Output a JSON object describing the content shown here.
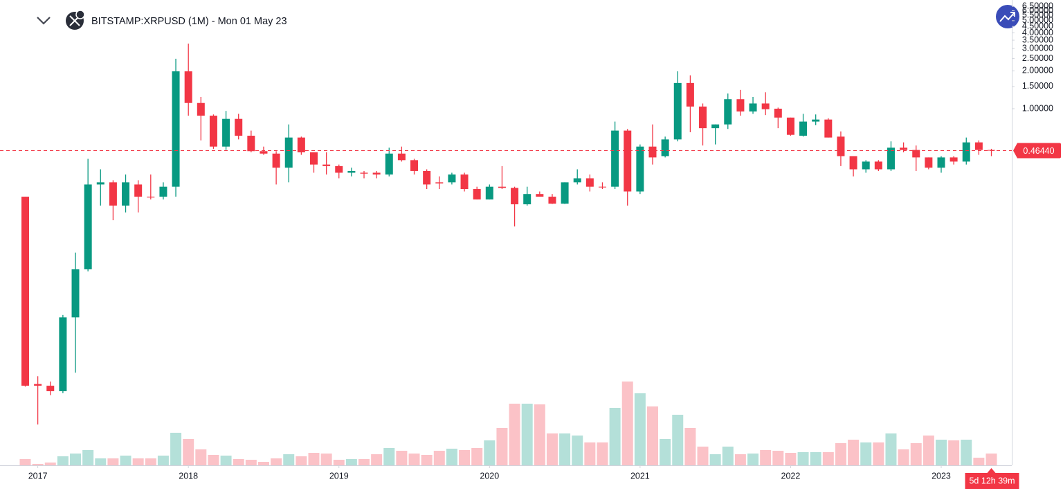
{
  "chart_data": {
    "type": "candlestick",
    "title": "BITSTAMP:XRPUSD (1M) - Mon 01 May 23",
    "categories": [
      null,
      "2017",
      null,
      null,
      null,
      null,
      null,
      null,
      null,
      null,
      null,
      null,
      null,
      "2018",
      null,
      null,
      null,
      null,
      null,
      null,
      null,
      null,
      null,
      null,
      null,
      "2019",
      null,
      null,
      null,
      null,
      null,
      null,
      null,
      null,
      null,
      null,
      null,
      "2020",
      null,
      null,
      null,
      null,
      null,
      null,
      null,
      null,
      null,
      null,
      null,
      "2021",
      null,
      null,
      null,
      null,
      null,
      null,
      null,
      null,
      null,
      null,
      null,
      "2022",
      null,
      null,
      null,
      null,
      null,
      null,
      null,
      null,
      null,
      null,
      null,
      "2023",
      null,
      null,
      null,
      null
    ],
    "open": [
      0.2,
      0.0065,
      0.0063,
      0.0057,
      0.022,
      0.053,
      0.25,
      0.26,
      0.17,
      0.25,
      0.2,
      0.2,
      0.24,
      1.98,
      1.11,
      0.88,
      0.5,
      0.83,
      0.61,
      0.46,
      0.44,
      0.34,
      0.59,
      0.45,
      0.36,
      0.35,
      0.31,
      0.31,
      0.31,
      0.3,
      0.44,
      0.39,
      0.32,
      0.26,
      0.26,
      0.3,
      0.23,
      0.19,
      0.24,
      0.235,
      0.174,
      0.21,
      0.2,
      0.176,
      0.26,
      0.28,
      0.24,
      0.24,
      0.67,
      0.22,
      0.5,
      0.42,
      0.57,
      1.6,
      1.04,
      0.7,
      0.75,
      1.19,
      0.95,
      1.1,
      1.0,
      0.85,
      0.61,
      0.79,
      0.82,
      0.6,
      0.42,
      0.33,
      0.38,
      0.33,
      0.49,
      0.47,
      0.41,
      0.34,
      0.41,
      0.38,
      0.54,
      0.47
    ],
    "high": [
      0.2,
      0.0075,
      0.0068,
      0.023,
      0.072,
      0.4,
      0.33,
      0.27,
      0.3,
      0.27,
      0.3,
      0.26,
      2.49,
      3.29,
      1.24,
      0.9,
      0.96,
      0.91,
      0.67,
      0.5,
      0.46,
      0.75,
      0.6,
      0.45,
      0.45,
      0.36,
      0.34,
      0.32,
      0.32,
      0.49,
      0.5,
      0.4,
      0.33,
      0.29,
      0.31,
      0.31,
      0.24,
      0.25,
      0.35,
      0.24,
      0.24,
      0.22,
      0.21,
      0.26,
      0.33,
      0.3,
      0.26,
      0.79,
      0.69,
      0.52,
      0.75,
      0.6,
      1.98,
      1.84,
      1.1,
      0.75,
      1.32,
      1.41,
      1.24,
      1.35,
      1.02,
      0.85,
      0.91,
      0.9,
      0.84,
      0.66,
      0.42,
      0.39,
      0.39,
      0.55,
      0.54,
      0.51,
      0.41,
      0.42,
      0.42,
      0.59,
      0.56,
      0.48
    ],
    "low": [
      0.0062,
      0.0031,
      0.0053,
      0.0055,
      0.008,
      0.051,
      0.17,
      0.13,
      0.15,
      0.15,
      0.19,
      0.19,
      0.2,
      0.88,
      0.56,
      0.48,
      0.47,
      0.57,
      0.45,
      0.43,
      0.25,
      0.26,
      0.43,
      0.31,
      0.3,
      0.28,
      0.29,
      0.28,
      0.28,
      0.29,
      0.38,
      0.3,
      0.23,
      0.23,
      0.25,
      0.22,
      0.19,
      0.19,
      0.23,
      0.116,
      0.17,
      0.2,
      0.175,
      0.175,
      0.25,
      0.22,
      0.23,
      0.23,
      0.17,
      0.21,
      0.36,
      0.41,
      0.55,
      0.65,
      0.51,
      0.52,
      0.69,
      0.88,
      0.91,
      0.89,
      0.7,
      0.61,
      0.6,
      0.74,
      0.59,
      0.35,
      0.29,
      0.31,
      0.32,
      0.32,
      0.45,
      0.32,
      0.33,
      0.31,
      0.36,
      0.36,
      0.43,
      0.42
    ],
    "close": [
      0.0063,
      0.0063,
      0.0057,
      0.022,
      0.053,
      0.25,
      0.26,
      0.17,
      0.26,
      0.2,
      0.197,
      0.24,
      1.98,
      1.11,
      0.88,
      0.5,
      0.83,
      0.61,
      0.46,
      0.44,
      0.34,
      0.59,
      0.45,
      0.36,
      0.35,
      0.31,
      0.32,
      0.305,
      0.3,
      0.44,
      0.39,
      0.32,
      0.25,
      0.255,
      0.3,
      0.23,
      0.19,
      0.24,
      0.235,
      0.174,
      0.21,
      0.2,
      0.176,
      0.26,
      0.28,
      0.24,
      0.237,
      0.67,
      0.22,
      0.5,
      0.41,
      0.57,
      1.6,
      1.04,
      0.7,
      0.75,
      1.19,
      0.95,
      1.1,
      0.99,
      0.85,
      0.62,
      0.79,
      0.82,
      0.59,
      0.42,
      0.33,
      0.38,
      0.33,
      0.49,
      0.47,
      0.41,
      0.34,
      0.41,
      0.38,
      0.54,
      0.47,
      0.4644
    ],
    "volume": [
      9,
      2,
      4,
      13,
      17,
      22,
      10,
      10,
      14,
      10,
      10,
      14,
      47,
      38,
      23,
      15,
      14,
      9,
      8,
      5,
      10,
      16,
      13,
      18,
      17,
      8,
      9,
      9,
      16,
      25,
      21,
      17,
      15,
      21,
      24,
      22,
      25,
      36,
      54,
      89,
      89,
      88,
      46,
      46,
      43,
      33,
      33,
      83,
      121,
      104,
      85,
      38,
      73,
      54,
      27,
      16,
      27,
      16,
      17,
      22,
      21,
      18,
      19,
      19,
      19,
      32,
      37,
      33,
      33,
      46,
      23,
      32,
      43,
      37,
      36,
      37,
      11,
      17
    ],
    "volume_lim": [
      0,
      130
    ],
    "log_scale": true,
    "ylim": [
      0.00147,
      7.3
    ],
    "yticks": [
      {
        "value": 1.0,
        "label": "1.00000"
      },
      {
        "value": 1.5,
        "label": "1.50000"
      },
      {
        "value": 2.0,
        "label": "2.00000"
      },
      {
        "value": 2.5,
        "label": "2.50000"
      },
      {
        "value": 3.0,
        "label": "3.00000"
      },
      {
        "value": 3.5,
        "label": "3.50000"
      },
      {
        "value": 4.0,
        "label": "4.00000"
      },
      {
        "value": 4.5,
        "label": "4.50000"
      },
      {
        "value": 5.0,
        "label": "5.00000"
      },
      {
        "value": 5.5,
        "label": "5.50000"
      },
      {
        "value": 6.0,
        "label": "6.00000"
      },
      {
        "value": 6.5,
        "label": "6.50000"
      }
    ],
    "grid": false,
    "up_color": "#089981",
    "down_color": "#f23645",
    "last_price": {
      "value": 0.4644,
      "label": "0.46440"
    },
    "countdown": "5d 12h 39m"
  }
}
